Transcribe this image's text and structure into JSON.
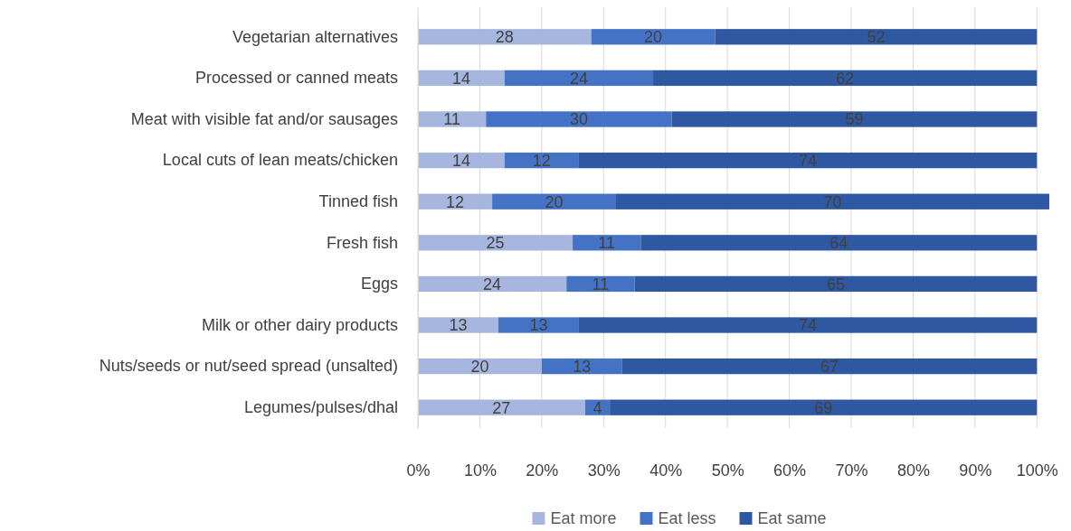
{
  "chart_data": {
    "type": "bar",
    "orientation": "horizontal",
    "stacked": true,
    "categories": [
      "Vegetarian alternatives",
      "Processed or canned meats",
      "Meat with visible fat and/or sausages",
      "Local cuts of lean meats/chicken",
      "Tinned fish",
      "Fresh fish",
      "Eggs",
      "Milk or other dairy products",
      "Nuts/seeds or nut/seed spread (unsalted)",
      "Legumes/pulses/dhal"
    ],
    "series": [
      {
        "name": "Eat more",
        "color": "#a6b6df",
        "values": [
          28,
          14,
          11,
          14,
          12,
          25,
          24,
          13,
          20,
          27
        ]
      },
      {
        "name": "Eat less",
        "color": "#4473c5",
        "values": [
          20,
          24,
          30,
          12,
          20,
          11,
          11,
          13,
          13,
          4
        ]
      },
      {
        "name": "Eat same",
        "color": "#2f58a3",
        "values": [
          52,
          62,
          59,
          74,
          70,
          64,
          65,
          74,
          67,
          69
        ]
      }
    ],
    "xlim": [
      0,
      102
    ],
    "xticks": [
      {
        "value": 0,
        "label": "0%"
      },
      {
        "value": 10,
        "label": "10%"
      },
      {
        "value": 20,
        "label": "20%"
      },
      {
        "value": 30,
        "label": "30%"
      },
      {
        "value": 40,
        "label": "40%"
      },
      {
        "value": 50,
        "label": "50%"
      },
      {
        "value": 60,
        "label": "60%"
      },
      {
        "value": 70,
        "label": "70%"
      },
      {
        "value": 80,
        "label": "80%"
      },
      {
        "value": 90,
        "label": "90%"
      },
      {
        "value": 100,
        "label": "100%"
      }
    ],
    "grid": "x",
    "legend": "bottom",
    "data_labels": true
  }
}
